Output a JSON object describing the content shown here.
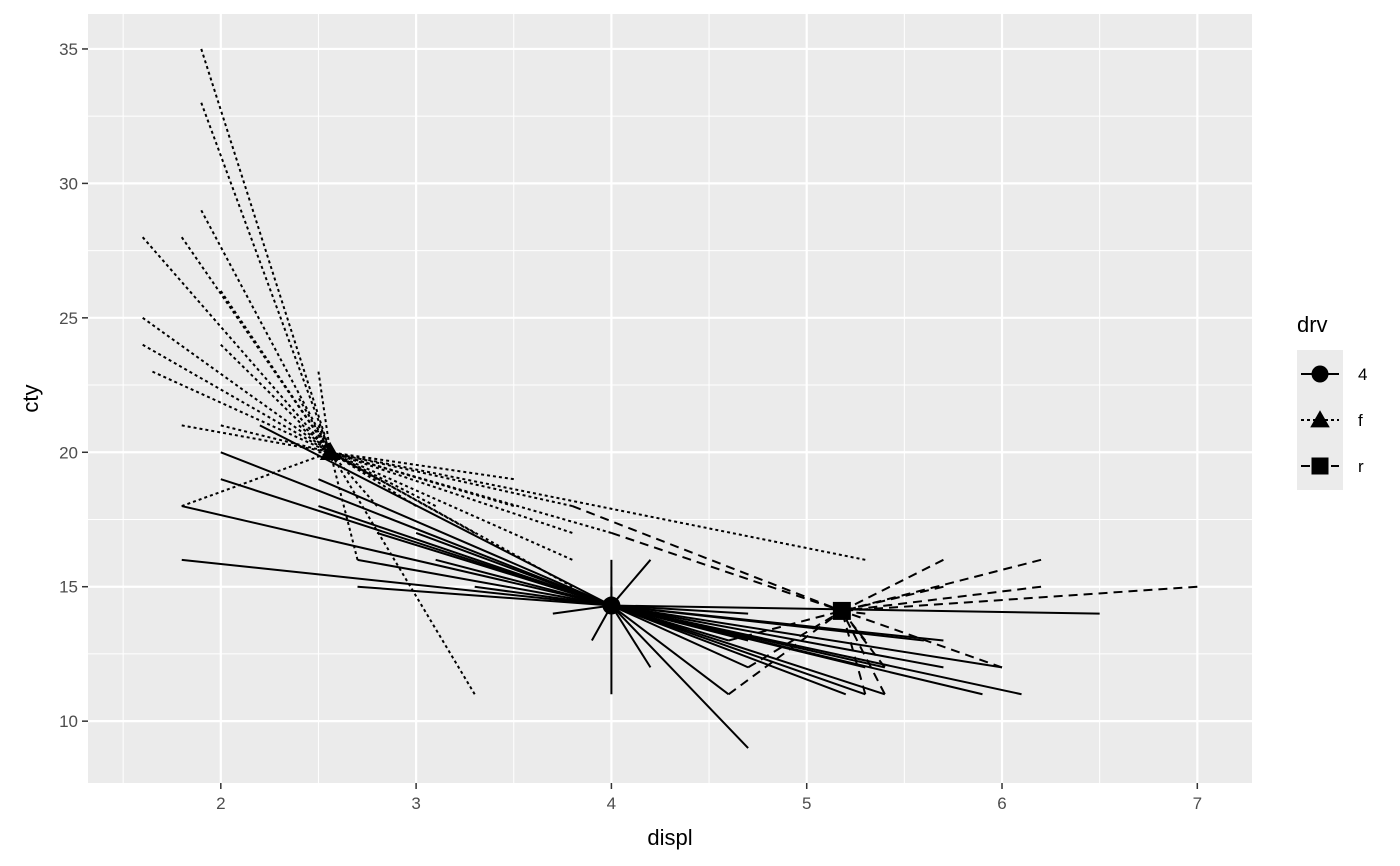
{
  "chart_data": {
    "type": "scatter",
    "subtype": "star (segments from each point to its group centroid)",
    "xlabel": "displ",
    "ylabel": "cty",
    "xlim": [
      1.32,
      7.28
    ],
    "ylim": [
      7.7,
      36.3
    ],
    "x_ticks": [
      2,
      3,
      4,
      5,
      6,
      7
    ],
    "y_ticks": [
      10,
      15,
      20,
      25,
      30,
      35
    ],
    "grid": true,
    "panel_background": "#ebebeb",
    "grid_color": "#ffffff",
    "mark_color": "#000000",
    "legend": {
      "title": "drv",
      "position": "right",
      "entries": [
        {
          "label": "4",
          "shape": "circle",
          "linetype": "solid"
        },
        {
          "label": "f",
          "shape": "triangle",
          "linetype": "dotted"
        },
        {
          "label": "r",
          "shape": "square",
          "linetype": "dashed"
        }
      ]
    },
    "series": [
      {
        "name": "4",
        "shape": "circle",
        "linetype": "solid",
        "centroid": [
          4.0,
          14.3
        ],
        "points": [
          [
            1.8,
            18
          ],
          [
            1.8,
            16
          ],
          [
            2.0,
            20
          ],
          [
            2.0,
            19
          ],
          [
            2.2,
            21
          ],
          [
            2.5,
            18
          ],
          [
            2.5,
            19
          ],
          [
            2.7,
            16
          ],
          [
            2.7,
            15
          ],
          [
            3.0,
            17
          ],
          [
            3.3,
            15
          ],
          [
            3.7,
            14
          ],
          [
            3.9,
            13
          ],
          [
            4.0,
            16
          ],
          [
            4.0,
            11
          ],
          [
            4.0,
            15
          ],
          [
            4.2,
            12
          ],
          [
            4.2,
            16
          ],
          [
            4.6,
            11
          ],
          [
            4.7,
            9
          ],
          [
            4.7,
            14
          ],
          [
            4.7,
            12
          ],
          [
            4.7,
            13
          ],
          [
            5.2,
            11
          ],
          [
            5.3,
            11
          ],
          [
            5.4,
            11
          ],
          [
            5.6,
            13
          ],
          [
            5.7,
            13
          ],
          [
            6.0,
            12
          ],
          [
            6.1,
            11
          ],
          [
            6.5,
            14
          ],
          [
            5.9,
            11
          ],
          [
            5.4,
            12
          ],
          [
            4.6,
            13
          ],
          [
            2.8,
            17
          ],
          [
            3.1,
            16
          ],
          [
            5.3,
            12
          ],
          [
            5.7,
            12
          ]
        ]
      },
      {
        "name": "f",
        "shape": "triangle",
        "linetype": "dotted",
        "centroid": [
          2.56,
          20.0
        ],
        "points": [
          [
            1.6,
            28
          ],
          [
            1.6,
            25
          ],
          [
            1.6,
            24
          ],
          [
            1.65,
            23
          ],
          [
            1.8,
            28
          ],
          [
            1.8,
            21
          ],
          [
            1.8,
            18
          ],
          [
            1.9,
            35
          ],
          [
            1.9,
            33
          ],
          [
            1.9,
            29
          ],
          [
            2.0,
            21
          ],
          [
            2.0,
            26
          ],
          [
            2.4,
            21
          ],
          [
            2.5,
            23
          ],
          [
            2.5,
            21
          ],
          [
            2.7,
            16
          ],
          [
            2.8,
            18
          ],
          [
            3.0,
            18
          ],
          [
            3.1,
            18
          ],
          [
            3.3,
            11
          ],
          [
            3.5,
            19
          ],
          [
            3.8,
            17
          ],
          [
            3.8,
            16
          ],
          [
            3.8,
            18
          ],
          [
            4.0,
            17
          ],
          [
            5.3,
            16
          ],
          [
            2.8,
            19
          ],
          [
            3.3,
            17
          ],
          [
            3.8,
            15
          ],
          [
            3.5,
            18
          ],
          [
            2.0,
            24
          ],
          [
            2.4,
            22
          ],
          [
            2.5,
            20
          ]
        ]
      },
      {
        "name": "r",
        "shape": "square",
        "linetype": "dashed",
        "centroid": [
          5.18,
          14.1
        ],
        "points": [
          [
            3.8,
            18
          ],
          [
            4.6,
            11
          ],
          [
            4.7,
            12
          ],
          [
            5.3,
            13
          ],
          [
            5.4,
            11
          ],
          [
            5.7,
            16
          ],
          [
            6.0,
            12
          ],
          [
            6.2,
            16
          ],
          [
            6.2,
            15
          ],
          [
            7.0,
            15
          ],
          [
            5.3,
            11
          ],
          [
            5.4,
            12
          ],
          [
            5.7,
            15
          ],
          [
            4.0,
            17
          ],
          [
            4.6,
            13
          ],
          [
            5.3,
            14
          ]
        ]
      }
    ]
  }
}
